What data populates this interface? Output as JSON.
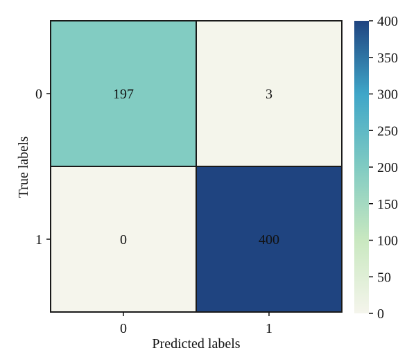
{
  "chart_data": {
    "type": "heatmap",
    "title": "",
    "xlabel": "Predicted labels",
    "ylabel": "True labels",
    "x_categories": [
      "0",
      "1"
    ],
    "y_categories": [
      "0",
      "1"
    ],
    "values": [
      [
        197,
        3
      ],
      [
        0,
        400
      ]
    ],
    "colorbar": {
      "min": 0,
      "max": 400,
      "ticks": [
        0,
        50,
        100,
        150,
        200,
        250,
        300,
        350,
        400
      ],
      "colormap": "YlGnBu-like",
      "colors": [
        "#f5f5ec",
        "#c9e8c0",
        "#80cbc2",
        "#3fa6c8",
        "#1f4480"
      ]
    },
    "grid": false,
    "legend": "none"
  }
}
